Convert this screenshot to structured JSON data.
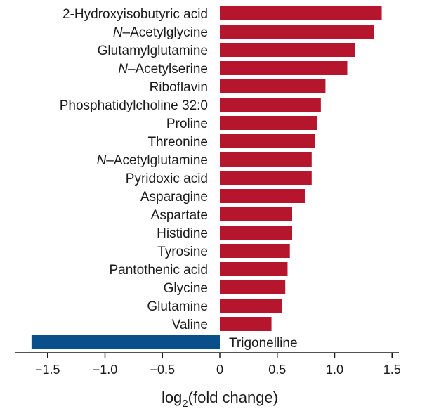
{
  "chart_data": {
    "type": "bar",
    "orientation": "horizontal",
    "xlabel_base": "log",
    "xlabel_subscript": "2",
    "xlabel_rest": "(fold change)",
    "xlim": [
      -1.75,
      1.55
    ],
    "xticks": [
      -1.5,
      -1.0,
      -0.5,
      0,
      0.5,
      1.0,
      1.5
    ],
    "xtick_labels": [
      "−1.5",
      "−1.0",
      "−0.5",
      "0",
      "0.5",
      "1.0",
      "1.5"
    ],
    "grid": false,
    "legend": "none",
    "colors": {
      "positive": "#b5162d",
      "negative": "#0a4f8a"
    },
    "items": [
      {
        "name": "2-Hydroxyisobutyric acid",
        "value": 1.41
      },
      {
        "name": "N-Acetylglycine",
        "value": 1.34,
        "italic_prefix": "N",
        "rest": "–Acetylglycine"
      },
      {
        "name": "Glutamylglutamine",
        "value": 1.18
      },
      {
        "name": "N-Acetylserine",
        "value": 1.11,
        "italic_prefix": "N",
        "rest": "–Acetylserine"
      },
      {
        "name": "Riboflavin",
        "value": 0.92
      },
      {
        "name": "Phosphatidylcholine 32:0",
        "value": 0.88
      },
      {
        "name": "Proline",
        "value": 0.85
      },
      {
        "name": "Threonine",
        "value": 0.83
      },
      {
        "name": "N-Acetylglutamine",
        "value": 0.8,
        "italic_prefix": "N",
        "rest": "–Acetylglutamine"
      },
      {
        "name": "Pyridoxic acid",
        "value": 0.8
      },
      {
        "name": "Asparagine",
        "value": 0.74
      },
      {
        "name": "Aspartate",
        "value": 0.63
      },
      {
        "name": "Histidine",
        "value": 0.63
      },
      {
        "name": "Tyrosine",
        "value": 0.61
      },
      {
        "name": "Pantothenic acid",
        "value": 0.59
      },
      {
        "name": "Glycine",
        "value": 0.57
      },
      {
        "name": "Glutamine",
        "value": 0.54
      },
      {
        "name": "Valine",
        "value": 0.45
      },
      {
        "name": "Trigonelline",
        "value": -1.64
      }
    ]
  }
}
